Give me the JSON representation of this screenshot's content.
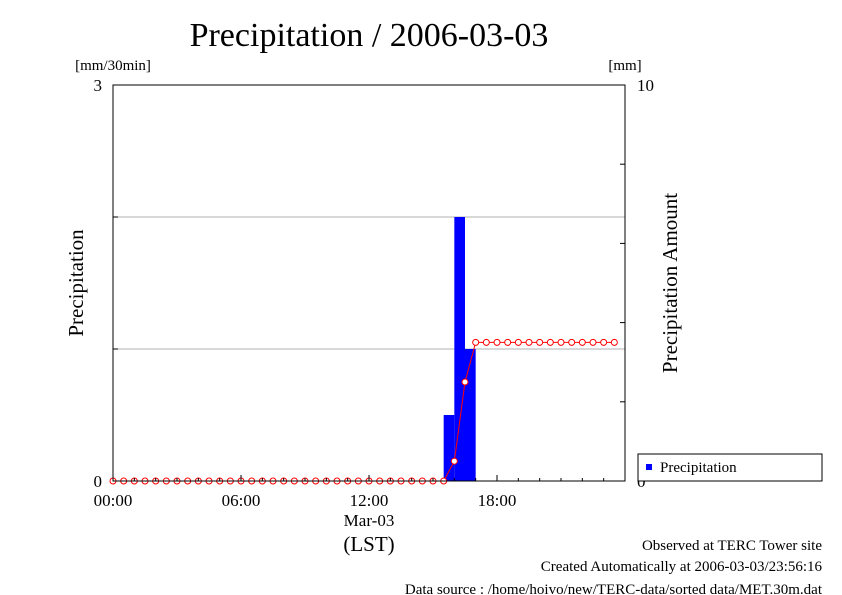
{
  "chart_data": {
    "type": "bar",
    "title": "Precipitation / 2006-03-03",
    "ylabel": "Precipitation",
    "y2label": "Precipitation Amount",
    "y_unit": "[mm/30min]",
    "y2_unit": "[mm]",
    "ylim": [
      0,
      3
    ],
    "y2lim": [
      0,
      10
    ],
    "y_ticks": [
      "0",
      "3"
    ],
    "y2_ticks": [
      "0",
      "10"
    ],
    "xlim": [
      0,
      24
    ],
    "x_ticks": [
      {
        "label": "00:00",
        "value": 0
      },
      {
        "label": "06:00",
        "value": 6
      },
      {
        "label": "12:00",
        "value": 12
      },
      {
        "label": "18:00",
        "value": 18
      }
    ],
    "x_date_label": "Mar-03",
    "x_zone_label": "(LST)",
    "grid_y": [
      1,
      2
    ],
    "series": [
      {
        "name": "Precipitation",
        "kind": "bar",
        "color": "#0000ff",
        "axis": "left",
        "x": [
          15.5,
          16.0,
          16.5
        ],
        "values": [
          0.5,
          2.0,
          1.0
        ],
        "bin_hours": 0.5
      },
      {
        "name": "",
        "kind": "line",
        "color": "#ff0000",
        "axis": "right",
        "x": [
          0,
          0.5,
          1,
          1.5,
          2,
          2.5,
          3,
          3.5,
          4,
          4.5,
          5,
          5.5,
          6,
          6.5,
          7,
          7.5,
          8,
          8.5,
          9,
          9.5,
          10,
          10.5,
          11,
          11.5,
          12,
          12.5,
          13,
          13.5,
          14,
          14.5,
          15,
          15.5,
          16,
          16.5,
          17,
          17.5,
          18,
          18.5,
          19,
          19.5,
          20,
          20.5,
          21,
          21.5,
          22,
          22.5,
          23,
          23.5
        ],
        "values": [
          0,
          0,
          0,
          0,
          0,
          0,
          0,
          0,
          0,
          0,
          0,
          0,
          0,
          0,
          0,
          0,
          0,
          0,
          0,
          0,
          0,
          0,
          0,
          0,
          0,
          0,
          0,
          0,
          0,
          0,
          0,
          0,
          0.5,
          2.5,
          3.5,
          3.5,
          3.5,
          3.5,
          3.5,
          3.5,
          3.5,
          3.5,
          3.5,
          3.5,
          3.5,
          3.5,
          3.5,
          3.5
        ]
      }
    ],
    "legend": {
      "position": "bottom-right",
      "entries": [
        "Precipitation"
      ]
    }
  },
  "footer": {
    "observed": "Observed at TERC Tower site",
    "created": "Created Automatically at 2006-03-03/23:56:16",
    "source": "Data source : /home/hoivo/new/TERC-data/sorted  data/MET.30m.dat"
  }
}
